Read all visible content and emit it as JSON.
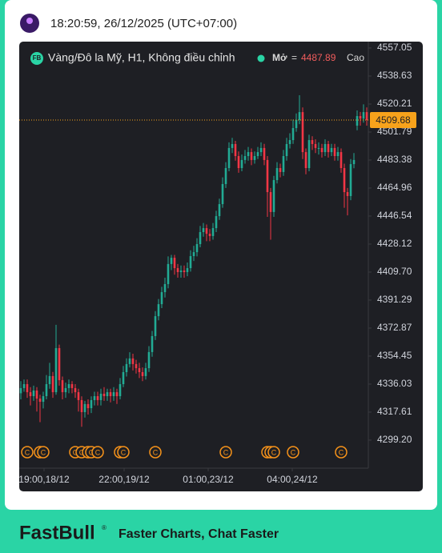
{
  "header": {
    "timestamp": "18:20:59, 26/12/2025 (UTC+07:00)"
  },
  "chart_data": {
    "type": "candlestick",
    "symbol_badge": "FB",
    "title": "Vàng/Đô la Mỹ, H1, Không điều chỉnh",
    "legend": {
      "field": "Mở",
      "equals": "=",
      "value": 4487.89,
      "next_field": "Cao"
    },
    "up_color": "#22ab94",
    "down_color": "#f23645",
    "open": [
      4330.0,
      4333.4,
      4336.0,
      4330.7,
      4328.1,
      4331.8,
      4326.5,
      4324.4,
      4328.1,
      4336.0,
      4341.3,
      4330.7,
      4359.7,
      4338.6,
      4330.7,
      4333.4,
      4336.0,
      4333.4,
      4330.7,
      4325.5,
      4317.6,
      4322.9,
      4320.2,
      4325.5,
      4328.1,
      4325.5,
      4329.7,
      4328.1,
      4330.7,
      4328.1,
      4330.7,
      4328.1,
      4336.0,
      4343.9,
      4349.2,
      4352.9,
      4349.2,
      4346.5,
      4343.9,
      4341.3,
      4346.5,
      4357.1,
      4367.6,
      4380.7,
      4388.6,
      4396.5,
      4401.8,
      4415.0,
      4419.1,
      4412.3,
      4409.7,
      4410.7,
      4409.7,
      4412.3,
      4420.2,
      4422.8,
      4428.1,
      4436.0,
      4438.6,
      4434.9,
      4433.4,
      4438.6,
      4446.5,
      4454.4,
      4467.6,
      4478.1,
      4491.3,
      4493.9,
      4486.0,
      4478.1,
      4483.4,
      4486.0,
      4488.6,
      4483.4,
      4486.0,
      4488.6,
      4491.3,
      4483.4,
      4462.3,
      4449.2,
      4470.2,
      4478.1,
      4475.5,
      4486.0,
      4493.9,
      4496.5,
      4504.4,
      4509.7,
      4514.9,
      4488.6,
      4478.1,
      4496.5,
      4493.9,
      4491.3,
      4491.3,
      4488.6,
      4493.9,
      4488.6,
      4491.3,
      4486.0,
      4488.6,
      4478.1,
      4462.3,
      4459.7,
      4480.7,
      4506.0,
      4512.3,
      4510.6,
      4514.9
    ],
    "high": [
      4338,
      4339,
      4339,
      4334,
      4335,
      4334,
      4329,
      4331,
      4342,
      4350,
      4344,
      4375,
      4362,
      4341,
      4337,
      4339,
      4338,
      4336,
      4333,
      4328,
      4325,
      4326,
      4328,
      4331,
      4331,
      4333,
      4334,
      4333,
      4333,
      4334,
      4333,
      4340,
      4348,
      4353,
      4357,
      4356,
      4352,
      4350,
      4347,
      4350,
      4361,
      4371,
      4384,
      4392,
      4400,
      4406,
      4420,
      4421,
      4421,
      4415,
      4414,
      4414,
      4416,
      4424,
      4427,
      4432,
      4440,
      4442,
      4441,
      4438,
      4442,
      4450,
      4458,
      4472,
      4482,
      4495,
      4498,
      4496,
      4489,
      4487,
      4490,
      4492,
      4491,
      4489,
      4492,
      4495,
      4494,
      4486,
      4465,
      4473,
      4482,
      4481,
      4490,
      4498,
      4501,
      4510,
      4514,
      4526,
      4518,
      4491,
      4500,
      4499,
      4497,
      4495,
      4494,
      4497,
      4496,
      4494,
      4494,
      4492,
      4491,
      4481,
      4465,
      4484,
      4488,
      4516,
      4515,
      4520,
      4518
    ],
    "low": [
      4326,
      4331,
      4327,
      4322,
      4325,
      4318,
      4311,
      4320,
      4326,
      4333,
      4327,
      4329,
      4335,
      4326,
      4327,
      4330,
      4330,
      4327,
      4318,
      4308,
      4314,
      4316,
      4317,
      4322,
      4322,
      4322,
      4325,
      4325,
      4324,
      4325,
      4323,
      4326,
      4334,
      4341,
      4347,
      4345,
      4343,
      4340,
      4338,
      4339,
      4344,
      4354,
      4365,
      4378,
      4386,
      4393,
      4399,
      4411,
      4408,
      4406,
      4406,
      4406,
      4407,
      4410,
      4417,
      4420,
      4426,
      4433,
      4430,
      4430,
      4431,
      4436,
      4444,
      4452,
      4465,
      4476,
      4488,
      4483,
      4475,
      4476,
      4481,
      4483,
      4480,
      4481,
      4484,
      4486,
      4480,
      4446,
      4431,
      4446,
      4468,
      4472,
      4473,
      4483,
      4491,
      4494,
      4502,
      4507,
      4484,
      4474,
      4476,
      4490,
      4488,
      4487,
      4485,
      4486,
      4485,
      4486,
      4483,
      4483,
      4475,
      4452,
      4447,
      4457,
      4478,
      4503,
      4506,
      4508,
      4506
    ],
    "close": [
      4333.4,
      4336.0,
      4330.7,
      4328.1,
      4331.8,
      4326.5,
      4324.4,
      4328.1,
      4336.0,
      4341.3,
      4330.7,
      4359.7,
      4338.6,
      4330.7,
      4333.4,
      4336.0,
      4333.4,
      4330.7,
      4325.5,
      4317.6,
      4322.9,
      4320.2,
      4325.5,
      4328.1,
      4325.5,
      4329.7,
      4328.1,
      4330.7,
      4328.1,
      4330.7,
      4328.1,
      4336.0,
      4343.9,
      4349.2,
      4352.9,
      4349.2,
      4346.5,
      4343.9,
      4341.3,
      4346.5,
      4357.1,
      4367.6,
      4380.7,
      4388.6,
      4396.5,
      4401.8,
      4415.0,
      4419.1,
      4412.3,
      4409.7,
      4410.7,
      4409.7,
      4412.3,
      4420.2,
      4422.8,
      4428.1,
      4436.0,
      4438.6,
      4434.9,
      4433.4,
      4438.6,
      4446.5,
      4454.4,
      4467.6,
      4478.1,
      4491.3,
      4493.9,
      4486.0,
      4478.1,
      4483.4,
      4486.0,
      4488.6,
      4483.4,
      4486.0,
      4488.6,
      4491.3,
      4483.4,
      4462.3,
      4449.2,
      4470.2,
      4478.1,
      4475.5,
      4486.0,
      4493.9,
      4496.5,
      4504.4,
      4509.7,
      4514.9,
      4488.6,
      4478.1,
      4496.5,
      4493.9,
      4491.3,
      4491.3,
      4488.6,
      4493.9,
      4488.6,
      4491.3,
      4486.0,
      4488.6,
      4478.1,
      4462.3,
      4459.7,
      4480.7,
      4483.4,
      4512.3,
      4510.6,
      4514.9,
      4509.68
    ],
    "last_price": 4509.68,
    "last_price_color": "#f7a21b",
    "xlim": [
      -0.5,
      108.5
    ],
    "xticks": [
      {
        "value": 7.25,
        "label": "19:00,18/12"
      },
      {
        "value": 32.25,
        "label": "22:00,19/12"
      },
      {
        "value": 58.5,
        "label": "01:00,23/12"
      },
      {
        "value": 84.75,
        "label": "04:00,24/12"
      }
    ],
    "ylim": [
      4280.74,
      4561.26
    ],
    "yticks": [
      4557.05,
      4538.63,
      4520.21,
      4501.79,
      4483.38,
      4464.96,
      4446.54,
      4428.12,
      {
        "value": 4409.7,
        "label": "4409.70"
      },
      4391.29,
      4372.87,
      4354.45,
      4336.03,
      4317.61,
      {
        "value": 4299.2,
        "label": "4299.20"
      }
    ],
    "event_markers": {
      "label": "C",
      "color": "#f7931a",
      "at": [
        2,
        6,
        7,
        17,
        19,
        21,
        22,
        24,
        31,
        32,
        42,
        64,
        77,
        78,
        79,
        85,
        100
      ]
    }
  },
  "footer": {
    "brand": "FastBull",
    "registered": "®",
    "tagline": "Faster Charts, Chat Faster"
  }
}
